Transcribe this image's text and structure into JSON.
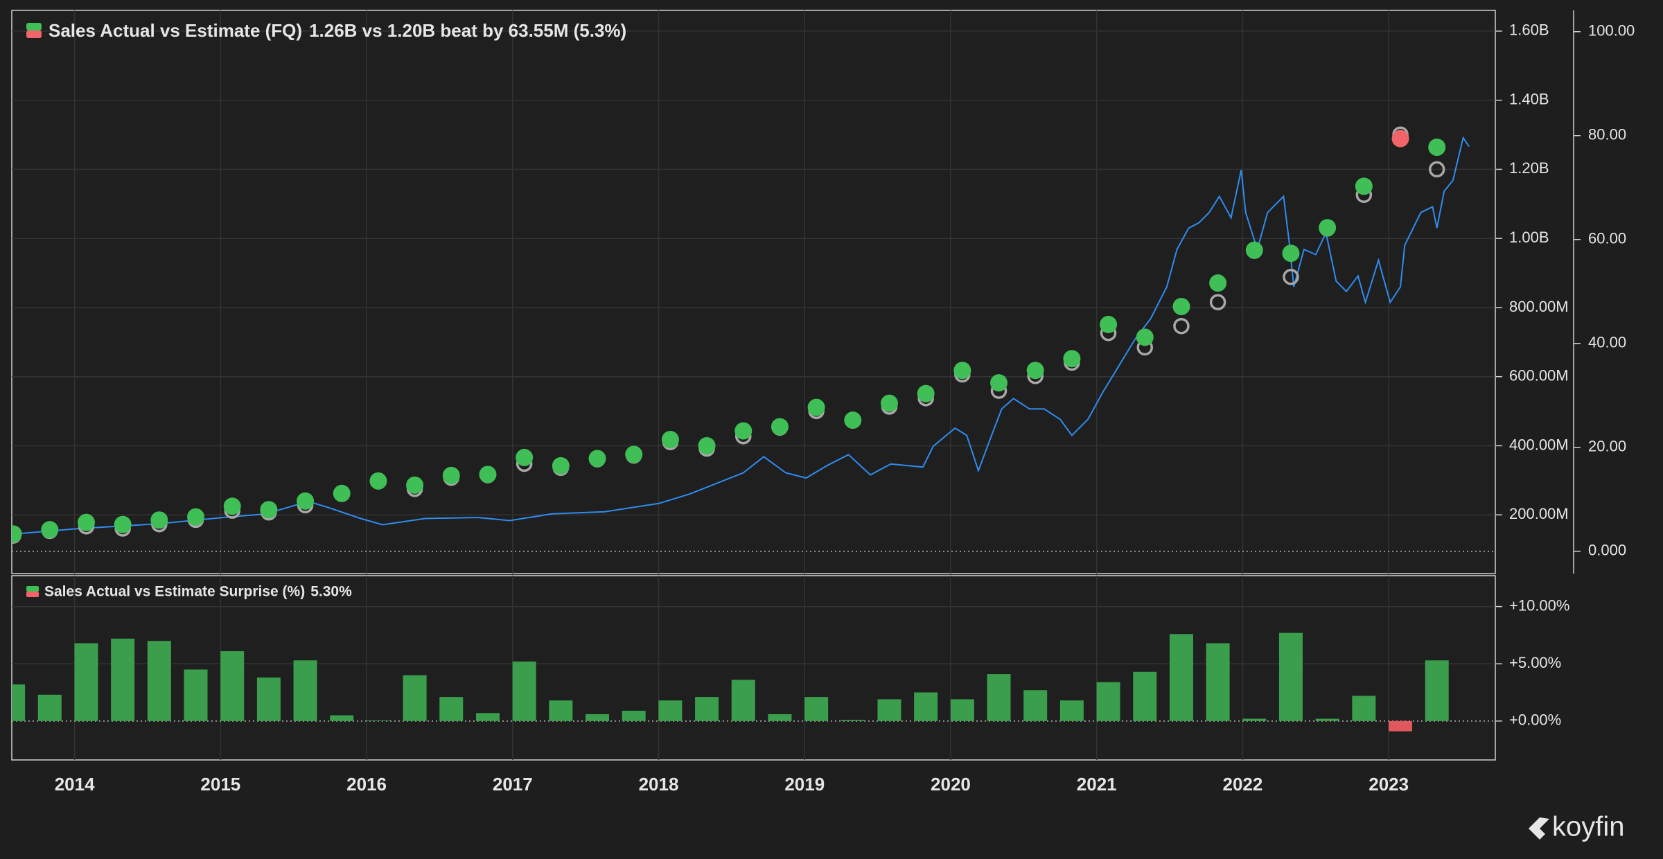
{
  "chart_data": [
    {
      "type": "scatter",
      "title": "Sales Actual vs Estimate (FQ)",
      "subtitle": "1.26B vs 1.20B beat by 63.55M (5.3%)",
      "x": [
        2013.58,
        2013.83,
        2014.08,
        2014.33,
        2014.58,
        2014.83,
        2015.08,
        2015.33,
        2015.58,
        2015.83,
        2016.08,
        2016.33,
        2016.58,
        2016.83,
        2017.08,
        2017.33,
        2017.58,
        2017.83,
        2018.08,
        2018.33,
        2018.58,
        2018.83,
        2019.08,
        2019.33,
        2019.58,
        2019.83,
        2020.08,
        2020.33,
        2020.58,
        2020.83,
        2021.08,
        2021.33,
        2021.58,
        2021.83,
        2022.08,
        2022.33,
        2022.58,
        2022.83,
        2023.08,
        2023.33
      ],
      "series": [
        {
          "style": "filled",
          "color": "#3fbf55",
          "miss_color": "#f0646a",
          "values": [
            144600000,
            157000000,
            178000000,
            172000000,
            185000000,
            194000000,
            225000000,
            215000000,
            240000000,
            262000000,
            298000000,
            286000000,
            314000000,
            317000000,
            366000000,
            342000000,
            363000000,
            375000000,
            418000000,
            400000000,
            443000000,
            455000000,
            511000000,
            474000000,
            523000000,
            551000000,
            618000000,
            582000000,
            618000000,
            652000000,
            751000000,
            714000000,
            803000000,
            871000000,
            966000000,
            957000000,
            1031000000,
            1151000000,
            1289000000,
            1264000000
          ]
        },
        {
          "style": "hollow",
          "color": "#a8a8a8",
          "values": [
            140100000,
            153500000,
            166700000,
            160400000,
            172900000,
            185600000,
            212100000,
            207100000,
            227900000,
            260700000,
            297900000,
            275000000,
            307500000,
            314800000,
            347900000,
            336000000,
            360800000,
            371700000,
            410600000,
            391800000,
            427600000,
            452300000,
            500500000,
            473500000,
            513200000,
            537600000,
            606500000,
            559100000,
            601800000,
            640500000,
            726300000,
            684600000,
            746300000,
            815500000,
            964100000,
            888600000,
            1028900000,
            1126200000,
            1300700000,
            1200000000
          ]
        },
        {
          "type": "line",
          "axis": "y2",
          "color": "#2f8cf0",
          "x": [
            2013.58,
            2014.0,
            2014.58,
            2015.02,
            2015.31,
            2015.6,
            2015.74,
            2015.96,
            2016.11,
            2016.4,
            2016.76,
            2016.98,
            2017.27,
            2017.63,
            2018.0,
            2018.21,
            2018.58,
            2018.72,
            2018.87,
            2019.01,
            2019.16,
            2019.3,
            2019.45,
            2019.59,
            2019.81,
            2019.88,
            2020.03,
            2020.11,
            2020.19,
            2020.28,
            2020.35,
            2020.43,
            2020.54,
            2020.64,
            2020.75,
            2020.83,
            2020.94,
            2021.04,
            2021.15,
            2021.26,
            2021.37,
            2021.48,
            2021.55,
            2021.63,
            2021.7,
            2021.77,
            2021.84,
            2021.92,
            2021.99,
            2022.02,
            2022.1,
            2022.17,
            2022.28,
            2022.32,
            2022.35,
            2022.42,
            2022.5,
            2022.57,
            2022.64,
            2022.71,
            2022.79,
            2022.84,
            2022.93,
            2023.01,
            2023.08,
            2023.11,
            2023.22,
            2023.3,
            2023.33,
            2023.38,
            2023.44,
            2023.51,
            2023.55
          ],
          "values": [
            3.3,
            4.3,
            5.3,
            6.5,
            7.2,
            9.6,
            8.4,
            6.3,
            5.1,
            6.3,
            6.5,
            5.9,
            7.2,
            7.6,
            9.2,
            11.0,
            15.1,
            18.2,
            15.1,
            14.1,
            16.6,
            18.6,
            14.7,
            16.8,
            16.2,
            20.2,
            23.7,
            22.3,
            15.5,
            22.3,
            27.4,
            29.4,
            27.4,
            27.4,
            25.4,
            22.3,
            25.4,
            30.5,
            35.6,
            40.7,
            44.8,
            50.9,
            58.1,
            62.2,
            63.2,
            65.2,
            68.3,
            64.2,
            73.4,
            65.2,
            58.1,
            65.2,
            68.3,
            59.1,
            50.9,
            58.1,
            57.1,
            61.3,
            52.0,
            50.0,
            53.0,
            47.9,
            56.0,
            47.9,
            50.9,
            58.9,
            65.2,
            66.3,
            62.2,
            69.3,
            71.4,
            79.6,
            77.9
          ]
        }
      ],
      "ylim": [
        30000000,
        1660000000
      ],
      "yticks": [
        {
          "value": 200000000,
          "label": "200.00M"
        },
        {
          "value": 400000000,
          "label": "400.00M"
        },
        {
          "value": 600000000,
          "label": "600.00M"
        },
        {
          "value": 800000000,
          "label": "800.00M"
        },
        {
          "value": 1000000000,
          "label": "1.00B"
        },
        {
          "value": 1200000000,
          "label": "1.20B"
        },
        {
          "value": 1400000000,
          "label": "1.40B"
        },
        {
          "value": 1600000000,
          "label": "1.60B"
        }
      ],
      "y2lim": [
        -4.3,
        104.1
      ],
      "y2ticks": [
        {
          "value": 0,
          "label": "0.000"
        },
        {
          "value": 20,
          "label": "20.00"
        },
        {
          "value": 40,
          "label": "40.00"
        },
        {
          "value": 60,
          "label": "60.00"
        },
        {
          "value": 80,
          "label": "80.00"
        },
        {
          "value": 100,
          "label": "100.00"
        }
      ],
      "grid": true
    },
    {
      "type": "bar",
      "title": "Sales Actual vs Estimate Surprise (%)",
      "subtitle": "5.30%",
      "values": [
        3.2,
        2.3,
        6.8,
        7.2,
        7.0,
        4.5,
        6.1,
        3.8,
        5.3,
        0.5,
        0.05,
        4.0,
        2.1,
        0.7,
        5.2,
        1.8,
        0.6,
        0.9,
        1.8,
        2.1,
        3.6,
        0.6,
        2.1,
        0.1,
        1.9,
        2.5,
        1.9,
        4.1,
        2.7,
        1.8,
        3.4,
        4.3,
        7.6,
        6.8,
        0.2,
        7.7,
        0.2,
        2.2,
        -0.9,
        5.3
      ],
      "color": "#3a9e4c",
      "negative_color": "#e0585d",
      "ylim": [
        -3.4,
        12.7
      ],
      "yticks": [
        {
          "value": 0,
          "label": "+0.00%"
        },
        {
          "value": 5,
          "label": "+5.00%"
        },
        {
          "value": 10,
          "label": "+10.00%"
        }
      ],
      "xlim": [
        2013.57,
        2023.73
      ],
      "xticks": [
        2014,
        2015,
        2016,
        2017,
        2018,
        2019,
        2020,
        2021,
        2022,
        2023
      ],
      "grid": true
    }
  ],
  "watermark": "koyfin"
}
